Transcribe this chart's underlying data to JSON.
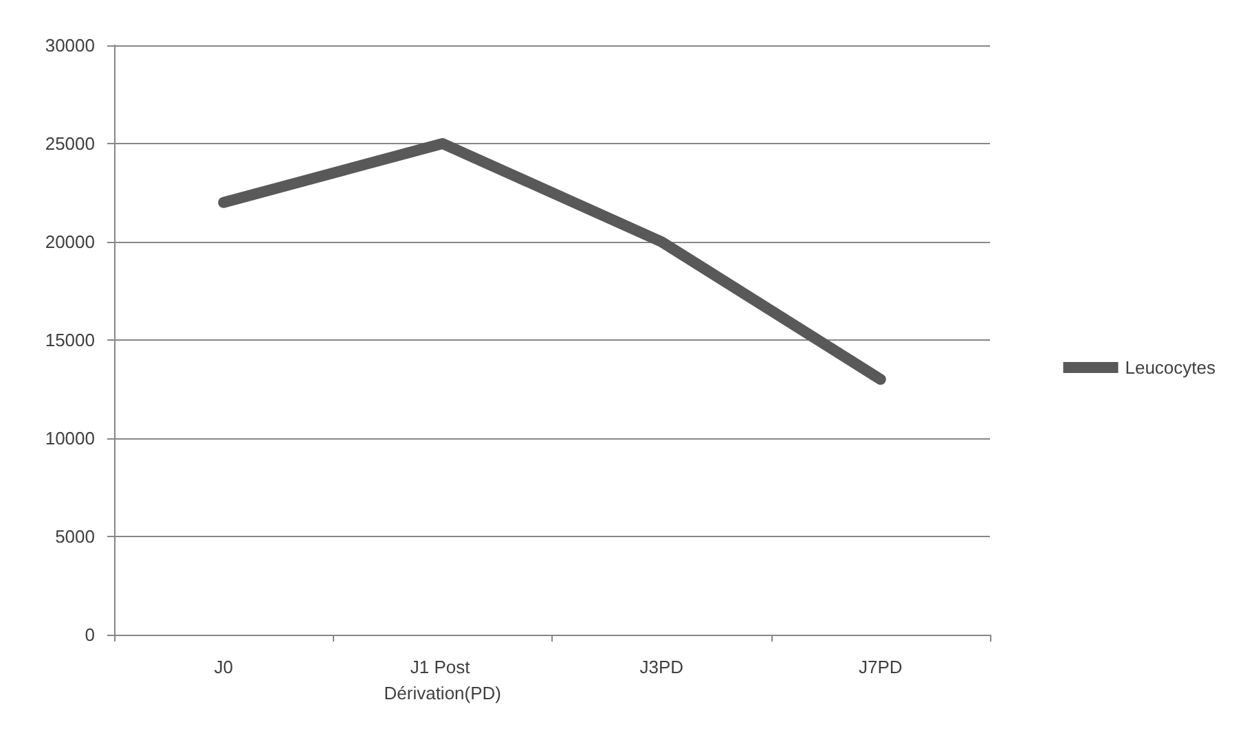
{
  "chart_data": {
    "type": "line",
    "categories": [
      "J0",
      "J1 Post Dérivation(PD)",
      "J3PD",
      "J7PD"
    ],
    "series": [
      {
        "name": "Leucocytes",
        "color": "#595959",
        "values": [
          22000,
          25000,
          20000,
          13000
        ]
      }
    ],
    "ylim": [
      0,
      30000
    ],
    "yticks": [
      0,
      5000,
      10000,
      15000,
      20000,
      25000,
      30000
    ],
    "grid": "y",
    "legend": "right",
    "marker": "none",
    "line_style": "solid"
  }
}
